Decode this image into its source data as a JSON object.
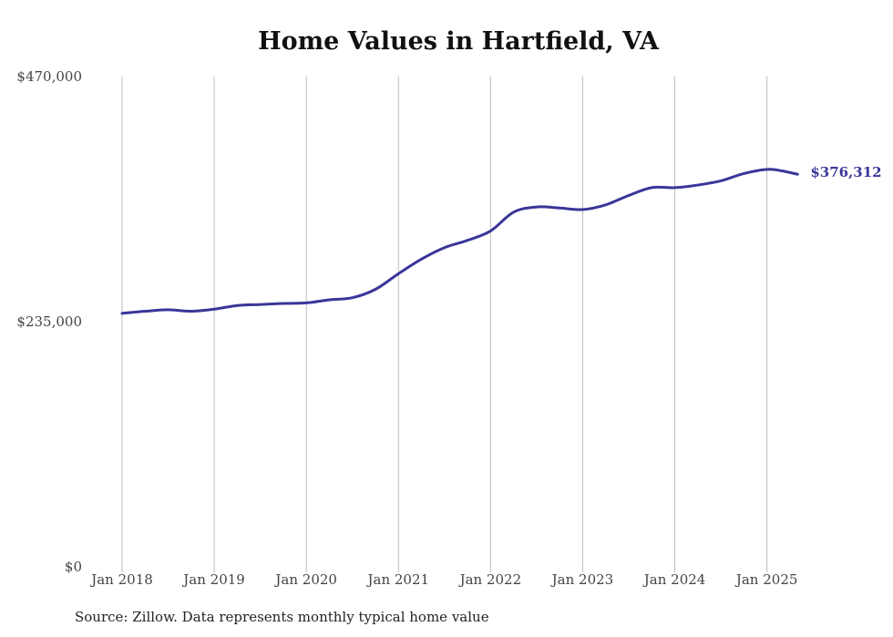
{
  "chart_data": {
    "type": "line",
    "title": "Home Values in Hartfield, VA",
    "xlabel": "",
    "ylabel": "",
    "ylim": [
      0,
      470000
    ],
    "y_ticks": [
      {
        "value": 0,
        "label": "$0"
      },
      {
        "value": 235000,
        "label": "$235,000"
      },
      {
        "value": 470000,
        "label": "$470,000"
      }
    ],
    "x_range": [
      2018.0,
      2025.33
    ],
    "x_ticks": [
      {
        "value": 2018,
        "label": "Jan 2018"
      },
      {
        "value": 2019,
        "label": "Jan 2019"
      },
      {
        "value": 2020,
        "label": "Jan 2020"
      },
      {
        "value": 2021,
        "label": "Jan 2021"
      },
      {
        "value": 2022,
        "label": "Jan 2022"
      },
      {
        "value": 2023,
        "label": "Jan 2023"
      },
      {
        "value": 2024,
        "label": "Jan 2024"
      },
      {
        "value": 2025,
        "label": "Jan 2025"
      }
    ],
    "grid": {
      "vertical": true,
      "horizontal": false
    },
    "series": [
      {
        "color": "#3a3699",
        "points": [
          {
            "x": "2018-01",
            "y": 243000
          },
          {
            "x": "2018-04",
            "y": 245000
          },
          {
            "x": "2018-07",
            "y": 246500
          },
          {
            "x": "2018-10",
            "y": 245000
          },
          {
            "x": "2019-01",
            "y": 247000
          },
          {
            "x": "2019-04",
            "y": 250500
          },
          {
            "x": "2019-07",
            "y": 251500
          },
          {
            "x": "2019-10",
            "y": 252500
          },
          {
            "x": "2020-01",
            "y": 253000
          },
          {
            "x": "2020-04",
            "y": 256000
          },
          {
            "x": "2020-07",
            "y": 258000
          },
          {
            "x": "2020-10",
            "y": 266000
          },
          {
            "x": "2021-01",
            "y": 281000
          },
          {
            "x": "2021-04",
            "y": 295000
          },
          {
            "x": "2021-07",
            "y": 306000
          },
          {
            "x": "2021-10",
            "y": 313000
          },
          {
            "x": "2022-01",
            "y": 322000
          },
          {
            "x": "2022-04",
            "y": 340000
          },
          {
            "x": "2022-07",
            "y": 345000
          },
          {
            "x": "2022-10",
            "y": 344000
          },
          {
            "x": "2023-01",
            "y": 342500
          },
          {
            "x": "2023-04",
            "y": 347000
          },
          {
            "x": "2023-07",
            "y": 356000
          },
          {
            "x": "2023-10",
            "y": 363500
          },
          {
            "x": "2024-01",
            "y": 363500
          },
          {
            "x": "2024-04",
            "y": 366000
          },
          {
            "x": "2024-07",
            "y": 370000
          },
          {
            "x": "2024-10",
            "y": 377000
          },
          {
            "x": "2025-01",
            "y": 381000
          },
          {
            "x": "2025-03",
            "y": 379500
          },
          {
            "x": "2025-05",
            "y": 376312
          }
        ]
      }
    ],
    "end_label": "$376,312",
    "source": "Source: Zillow. Data represents monthly typical home value"
  }
}
